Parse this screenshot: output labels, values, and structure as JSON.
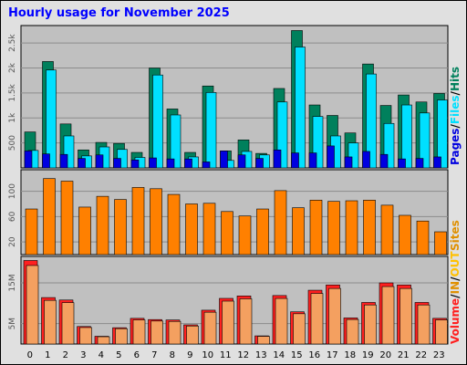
{
  "title": "Hourly usage for November 2025",
  "colors": {
    "frame_bg": "#e0e0e0",
    "panel_bg": "#c0c0c0",
    "hits": "#00805c",
    "files": "#00e0ff",
    "pages": "#0000e0",
    "sites": "#ff8000",
    "kbin": "#e09000",
    "kbout": "#ffc000",
    "volume": "#ff2020",
    "volume_face": "#f4a060",
    "title": "#0000ff"
  },
  "chart_data": [
    {
      "type": "bar",
      "panel": "hits-files-pages",
      "categories": [
        "0",
        "1",
        "2",
        "3",
        "4",
        "5",
        "6",
        "7",
        "8",
        "9",
        "10",
        "11",
        "12",
        "13",
        "14",
        "15",
        "16",
        "17",
        "18",
        "19",
        "20",
        "21",
        "22",
        "23"
      ],
      "yticks": [
        "500",
        "1k",
        "1.5k",
        "2k",
        "2.5k"
      ],
      "ylim": [
        0,
        2850
      ],
      "legend": [
        "Pages",
        "/",
        "Files",
        "/",
        "Hits"
      ],
      "legend_placement": "right",
      "series": [
        {
          "name": "Hits",
          "values": [
            720,
            2130,
            880,
            360,
            510,
            490,
            310,
            2000,
            1180,
            310,
            1640,
            340,
            560,
            290,
            1590,
            2750,
            1260,
            1050,
            700,
            2080,
            1250,
            1460,
            1320,
            1490
          ]
        },
        {
          "name": "Files",
          "values": [
            350,
            1960,
            640,
            240,
            420,
            370,
            210,
            1860,
            1060,
            220,
            1510,
            150,
            330,
            260,
            1320,
            2420,
            1030,
            640,
            500,
            1880,
            890,
            1260,
            1100,
            1360
          ]
        },
        {
          "name": "Pages",
          "values": [
            340,
            280,
            270,
            190,
            260,
            190,
            160,
            200,
            180,
            180,
            120,
            340,
            260,
            190,
            360,
            300,
            300,
            440,
            220,
            330,
            270,
            180,
            190,
            220
          ]
        }
      ]
    },
    {
      "type": "bar",
      "panel": "sites",
      "categories": [
        "0",
        "1",
        "2",
        "3",
        "4",
        "5",
        "6",
        "7",
        "8",
        "9",
        "10",
        "11",
        "12",
        "13",
        "14",
        "15",
        "16",
        "17",
        "18",
        "19",
        "20",
        "21",
        "22",
        "23"
      ],
      "yticks": [
        "20",
        "60",
        "100"
      ],
      "ylim": [
        0,
        134
      ],
      "legend": [
        "Sites"
      ],
      "legend_placement": "right",
      "series": [
        {
          "name": "Sites",
          "values": [
            72,
            120,
            116,
            75,
            92,
            87,
            106,
            104,
            95,
            80,
            81,
            68,
            61,
            72,
            101,
            74,
            86,
            84,
            85,
            86,
            78,
            62,
            53,
            36
          ]
        }
      ]
    },
    {
      "type": "bar",
      "panel": "volume",
      "categories": [
        "0",
        "1",
        "2",
        "3",
        "4",
        "5",
        "6",
        "7",
        "8",
        "9",
        "10",
        "11",
        "12",
        "13",
        "14",
        "15",
        "16",
        "17",
        "18",
        "19",
        "20",
        "21",
        "22",
        "23"
      ],
      "yticks": [
        "5M",
        "15M"
      ],
      "ylim": [
        0,
        21.5
      ],
      "legend": [
        "Volume",
        "/",
        "IN",
        "/",
        "OUT"
      ],
      "legend_placement": "right",
      "series": [
        {
          "name": "Volume",
          "values": [
            20.5,
            11.4,
            10.8,
            4.3,
            1.9,
            4.0,
            6.3,
            6.0,
            5.9,
            4.7,
            8.3,
            11.2,
            11.8,
            2.0,
            11.9,
            7.9,
            13.2,
            14.5,
            6.4,
            10.2,
            15.0,
            14.5,
            10.2,
            6.3
          ]
        }
      ]
    }
  ]
}
